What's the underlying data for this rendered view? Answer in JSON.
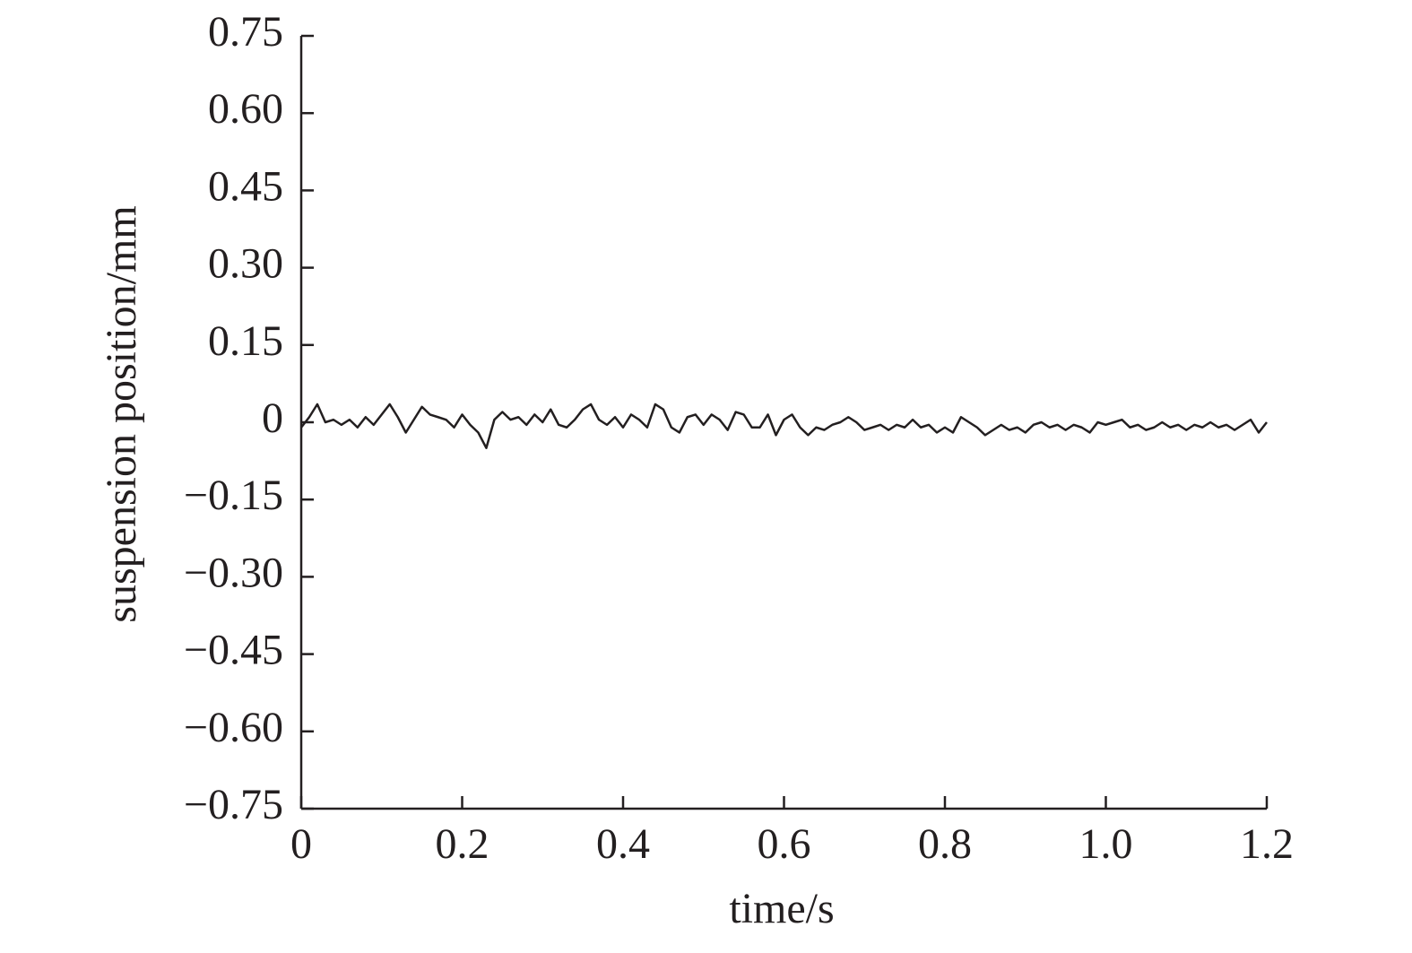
{
  "chart_data": {
    "type": "line",
    "xlabel": "time/s",
    "ylabel": "suspension position/mm",
    "x": [
      0,
      0.01,
      0.02,
      0.03,
      0.04,
      0.05,
      0.06,
      0.07,
      0.08,
      0.09,
      0.1,
      0.11,
      0.12,
      0.13,
      0.14,
      0.15,
      0.16,
      0.17,
      0.18,
      0.19,
      0.2,
      0.21,
      0.22,
      0.23,
      0.24,
      0.25,
      0.26,
      0.27,
      0.28,
      0.29,
      0.3,
      0.31,
      0.32,
      0.33,
      0.34,
      0.35,
      0.36,
      0.37,
      0.38,
      0.39,
      0.4,
      0.41,
      0.42,
      0.43,
      0.44,
      0.45,
      0.46,
      0.47,
      0.48,
      0.49,
      0.5,
      0.51,
      0.52,
      0.53,
      0.54,
      0.55,
      0.56,
      0.57,
      0.58,
      0.59,
      0.6,
      0.61,
      0.62,
      0.63,
      0.64,
      0.65,
      0.66,
      0.67,
      0.68,
      0.69,
      0.7,
      0.71,
      0.72,
      0.73,
      0.74,
      0.75,
      0.76,
      0.77,
      0.78,
      0.79,
      0.8,
      0.81,
      0.82,
      0.83,
      0.84,
      0.85,
      0.86,
      0.87,
      0.88,
      0.89,
      0.9,
      0.91,
      0.92,
      0.93,
      0.94,
      0.95,
      0.96,
      0.97,
      0.98,
      0.99,
      1,
      1.01,
      1.02,
      1.03,
      1.04,
      1.05,
      1.06,
      1.07,
      1.08,
      1.09,
      1.1,
      1.11,
      1.12,
      1.13,
      1.14,
      1.15,
      1.16,
      1.17,
      1.18,
      1.19,
      1.2
    ],
    "values": [
      -0.01,
      0.01,
      0.035,
      0,
      0.005,
      -0.005,
      0.005,
      -0.01,
      0.01,
      -0.005,
      0.015,
      0.035,
      0.01,
      -0.02,
      0.005,
      0.03,
      0.015,
      0.01,
      0.005,
      -0.01,
      0.015,
      -0.005,
      -0.02,
      -0.05,
      0.005,
      0.02,
      0.005,
      0.01,
      -0.005,
      0.015,
      0,
      0.025,
      -0.005,
      -0.01,
      0.005,
      0.025,
      0.035,
      0.005,
      -0.005,
      0.01,
      -0.01,
      0.015,
      0.005,
      -0.01,
      0.035,
      0.025,
      -0.01,
      -0.02,
      0.01,
      0.015,
      -0.005,
      0.015,
      0.005,
      -0.015,
      0.02,
      0.015,
      -0.01,
      -0.01,
      0.015,
      -0.025,
      0.005,
      0.015,
      -0.01,
      -0.025,
      -0.01,
      -0.015,
      -0.005,
      0,
      0.01,
      0,
      -0.015,
      -0.01,
      -0.005,
      -0.015,
      -0.005,
      -0.01,
      0.005,
      -0.01,
      -0.005,
      -0.02,
      -0.01,
      -0.02,
      0.01,
      0,
      -0.01,
      -0.025,
      -0.015,
      -0.005,
      -0.015,
      -0.01,
      -0.02,
      -0.005,
      0,
      -0.01,
      -0.005,
      -0.015,
      -0.005,
      -0.01,
      -0.02,
      0,
      -0.005,
      0,
      0.005,
      -0.01,
      -0.005,
      -0.015,
      -0.01,
      0,
      -0.01,
      -0.005,
      -0.015,
      -0.005,
      -0.01,
      0,
      -0.01,
      -0.005,
      -0.015,
      -0.005,
      0.005,
      -0.02,
      0
    ],
    "color": "#231f20",
    "xlim": [
      0,
      1.2
    ],
    "ylim": [
      -0.75,
      0.75
    ],
    "xticks": [
      0,
      0.2,
      0.4,
      0.6,
      0.8,
      {
        "value": 1,
        "label": "1.0"
      },
      1.2
    ],
    "yticks": [
      {
        "value": -0.75,
        "label": "−0.75"
      },
      {
        "value": -0.6,
        "label": "−0.60"
      },
      {
        "value": -0.45,
        "label": "−0.45"
      },
      {
        "value": -0.3,
        "label": "−0.30"
      },
      {
        "value": -0.15,
        "label": "−0.15"
      },
      0,
      0.15,
      {
        "value": 0.3,
        "label": "0.30"
      },
      0.45,
      {
        "value": 0.6,
        "label": "0.60"
      },
      0.75
    ],
    "grid": false
  }
}
